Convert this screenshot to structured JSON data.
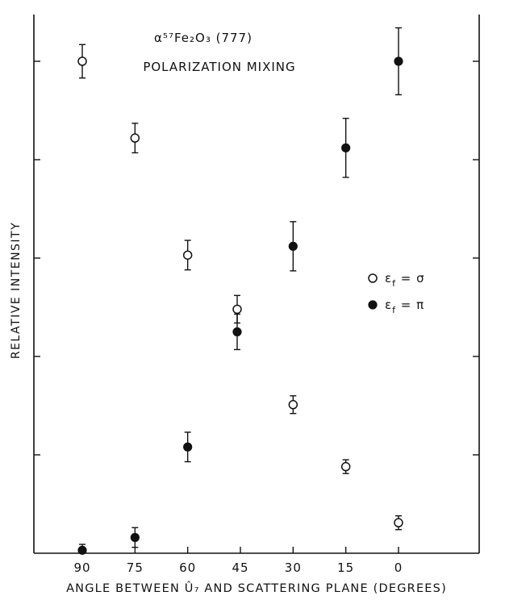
{
  "chart_data": {
    "type": "scatter",
    "title_line1": "α⁵⁷Fe₂O₃ (777)",
    "title_line2": "POLARIZATION MIXING",
    "xlabel": "ANGLE BETWEEN Û₇ AND SCATTERING PLANE (DEGREES)",
    "ylabel": "RELATIVE INTENSITY",
    "x_ticks": [
      90,
      75,
      60,
      45,
      30,
      15,
      0
    ],
    "x_tick_labels": [
      "90",
      "75",
      "60",
      "45",
      "30",
      "15",
      "0"
    ],
    "x_reversed": true,
    "ylim": [
      0,
      5
    ],
    "y_ticks_unlabeled": [
      1,
      2,
      3,
      4,
      5
    ],
    "grid": false,
    "legend_placement": "right",
    "series": [
      {
        "name": "εf = σ",
        "marker": "open-circle",
        "x": [
          90,
          75,
          60,
          45,
          30,
          15,
          0
        ],
        "y": [
          5.0,
          4.22,
          3.03,
          2.48,
          1.51,
          0.88,
          0.31
        ],
        "err": [
          0.17,
          0.15,
          0.15,
          0.14,
          0.09,
          0.07,
          0.07
        ]
      },
      {
        "name": "εf = π",
        "marker": "filled-circle",
        "x": [
          90,
          75,
          60,
          45,
          30,
          15,
          0
        ],
        "y": [
          0.03,
          0.16,
          1.08,
          2.25,
          3.12,
          4.12,
          5.0
        ],
        "err": [
          0.06,
          0.1,
          0.15,
          0.18,
          0.25,
          0.3,
          0.34
        ]
      }
    ],
    "legend": [
      {
        "symbol": "open-circle",
        "label": "ε",
        "sub": "f",
        "rest": " = σ"
      },
      {
        "symbol": "filled-circle",
        "label": "ε",
        "sub": "f",
        "rest": " = π"
      }
    ]
  }
}
